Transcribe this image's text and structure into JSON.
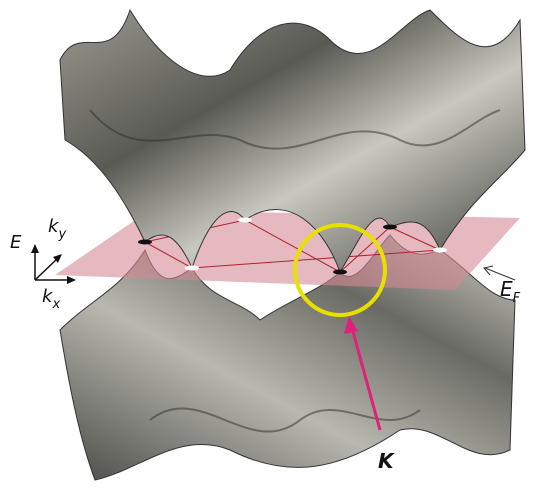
{
  "axes": {
    "energy": {
      "base": "E"
    },
    "ky": {
      "base": "k",
      "sub": "y"
    },
    "kx": {
      "base": "k",
      "sub": "x"
    }
  },
  "labels": {
    "fermi": {
      "base": "E",
      "sub": "F"
    },
    "k_point": "K"
  }
}
